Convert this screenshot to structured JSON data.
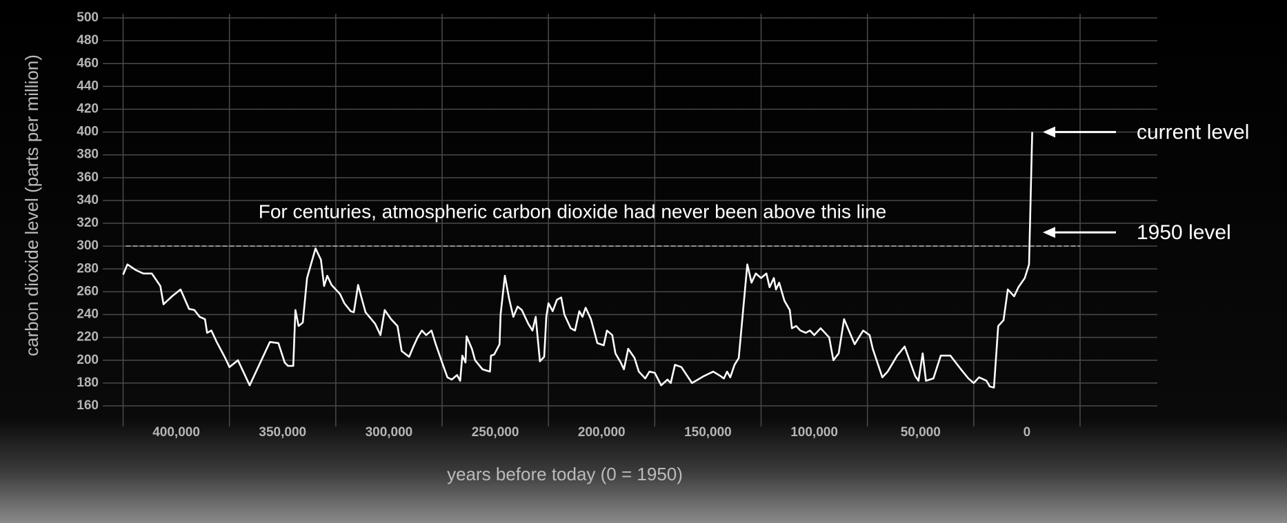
{
  "chart_data": {
    "type": "line",
    "xlabel": "years before today (0 = 1950)",
    "ylabel": "carbon dioxide level (parts per million)",
    "color": "#ffffff",
    "xlim": [
      425000,
      -25000
    ],
    "ylim": [
      160,
      500
    ],
    "xticks": [
      {
        "value": 400000,
        "label": "400,000"
      },
      {
        "value": 350000,
        "label": "350,000"
      },
      {
        "value": 300000,
        "label": "300,000"
      },
      {
        "value": 250000,
        "label": "250,000"
      },
      {
        "value": 200000,
        "label": "200,000"
      },
      {
        "value": 150000,
        "label": "150,000"
      },
      {
        "value": 100000,
        "label": "100,000"
      },
      {
        "value": 50000,
        "label": "50,000"
      },
      0
    ],
    "xgrid": [
      425000,
      375000,
      325000,
      275000,
      225000,
      175000,
      125000,
      75000,
      25000,
      -25000
    ],
    "yticks": [
      160,
      180,
      200,
      220,
      240,
      260,
      280,
      300,
      320,
      340,
      360,
      380,
      400,
      420,
      440,
      460,
      480,
      500
    ],
    "grid": true,
    "threshold": {
      "text": "For centuries, atmospheric carbon dioxide had never been above this line",
      "value": 300
    },
    "annotations": [
      {
        "text": "current level",
        "value": 400
      },
      {
        "text": "1950 level",
        "value": 312
      }
    ],
    "x": [
      425000,
      423000,
      419000,
      415500,
      411500,
      407500,
      406000,
      402000,
      398000,
      394000,
      391500,
      389000,
      386500,
      385500,
      383500,
      381000,
      377000,
      375000,
      371000,
      365500,
      360500,
      356000,
      352000,
      349000,
      347500,
      345000,
      344000,
      342500,
      340500,
      338500,
      334500,
      332000,
      330500,
      329000,
      327000,
      323000,
      321000,
      318000,
      316500,
      314500,
      312500,
      311000,
      306500,
      304000,
      302000,
      299000,
      296000,
      294000,
      290500,
      288500,
      286500,
      284500,
      282500,
      280000,
      278000,
      275000,
      272500,
      270500,
      268000,
      266500,
      265500,
      264000,
      263500,
      261000,
      259500,
      256000,
      252500,
      252000,
      250500,
      248000,
      247500,
      245500,
      243500,
      241500,
      239500,
      237500,
      234500,
      232500,
      231000,
      229000,
      227000,
      226000,
      225000,
      223000,
      221000,
      219000,
      217500,
      214500,
      212500,
      210500,
      209000,
      207500,
      205000,
      202000,
      199000,
      197500,
      195000,
      193500,
      191000,
      189500,
      187500,
      184500,
      182500,
      179500,
      177500,
      175000,
      172000,
      169000,
      167500,
      165500,
      162500,
      157500,
      152000,
      147500,
      144000,
      142500,
      141000,
      139500,
      137500,
      135500,
      131500,
      129500,
      127500,
      125000,
      122500,
      121000,
      119000,
      118000,
      116500,
      114000,
      111500,
      110500,
      108500,
      106500,
      104000,
      102000,
      100000,
      97000,
      93000,
      91000,
      88500,
      86000,
      81000,
      77000,
      74000,
      72500,
      68000,
      65500,
      61000,
      57500,
      52500,
      51000,
      49000,
      47500,
      44000,
      40500,
      36000,
      31000,
      27500,
      25000,
      22500,
      19000,
      17500,
      15500,
      13500,
      11000,
      9000,
      6000,
      4000,
      1000,
      -1000,
      -2500
    ],
    "values": [
      275,
      284,
      279,
      276,
      276,
      265,
      249,
      256,
      262,
      245,
      244,
      238,
      236,
      224,
      226,
      216,
      202,
      194,
      200,
      178,
      198,
      216,
      215,
      198,
      195,
      195,
      244,
      230,
      233,
      272,
      298,
      288,
      265,
      274,
      266,
      258,
      250,
      243,
      242,
      266,
      252,
      242,
      232,
      222,
      244,
      236,
      230,
      208,
      203,
      212,
      220,
      226,
      222,
      226,
      214,
      198,
      185,
      183,
      187,
      182,
      204,
      198,
      221,
      210,
      200,
      192,
      190,
      204,
      205,
      214,
      240,
      274,
      254,
      238,
      247,
      244,
      232,
      226,
      238,
      199,
      203,
      238,
      250,
      243,
      253,
      255,
      240,
      228,
      226,
      243,
      238,
      246,
      236,
      215,
      213,
      226,
      222,
      206,
      198,
      192,
      210,
      202,
      190,
      184,
      190,
      189,
      178,
      183,
      180,
      196,
      194,
      180,
      186,
      190,
      186,
      184,
      190,
      185,
      196,
      202,
      284,
      268,
      276,
      272,
      276,
      264,
      272,
      262,
      268,
      252,
      244,
      228,
      230,
      226,
      224,
      226,
      222,
      228,
      220,
      200,
      206,
      236,
      214,
      226,
      222,
      210,
      185,
      190,
      204,
      212,
      186,
      182,
      206,
      182,
      184,
      204,
      204,
      192,
      184,
      180,
      185,
      182,
      177,
      176,
      230,
      235,
      262,
      256,
      264,
      272,
      284,
      400
    ]
  }
}
